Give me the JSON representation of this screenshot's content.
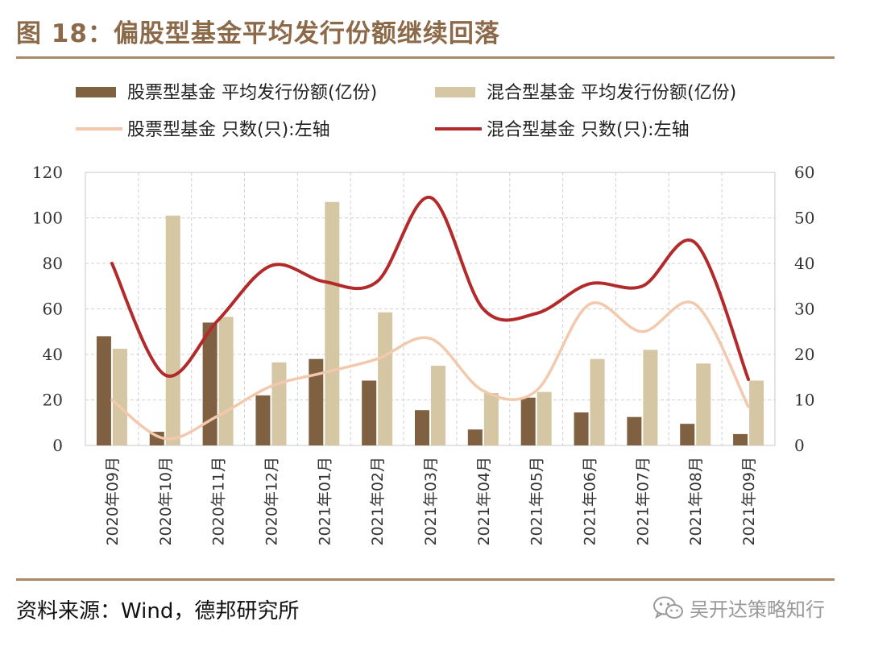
{
  "figure": {
    "title": "图 18：偏股型基金平均发行份额继续回落",
    "source": "资料来源：Wind，德邦研究所",
    "watermark": "吴开达策略知行",
    "watermark_icon": "wechat-icon"
  },
  "colors": {
    "stock_bar": "#7f6141",
    "mixed_bar": "#d5c6a4",
    "stock_line": "#f2c9ac",
    "mixed_line": "#b22a2a",
    "accent": "#8c6a49"
  },
  "chart_data": {
    "type": "bar",
    "categories": [
      "2020年09月",
      "2020年10月",
      "2020年11月",
      "2020年12月",
      "2021年01月",
      "2021年02月",
      "2021年03月",
      "2021年04月",
      "2021年05月",
      "2021年06月",
      "2021年07月",
      "2021年08月",
      "2021年09月"
    ],
    "series": [
      {
        "name": "股票型基金 平均发行份额(亿份)",
        "type": "bar",
        "axis": "left",
        "values": [
          48,
          6,
          54,
          22,
          38,
          28.5,
          15.5,
          7,
          21,
          14.5,
          12.5,
          9.5,
          5
        ]
      },
      {
        "name": "混合型基金 平均发行份额(亿份)",
        "type": "bar",
        "axis": "left",
        "values": [
          42.5,
          101,
          56.5,
          36.5,
          107,
          58.5,
          35,
          23,
          23.5,
          38,
          42,
          36,
          28.5
        ]
      },
      {
        "name": "股票型基金 只数(只):左轴",
        "type": "line",
        "axis": "right",
        "values": [
          10,
          1.5,
          6.5,
          13,
          16,
          19,
          23.5,
          12,
          12,
          31,
          25,
          31,
          8.5
        ]
      },
      {
        "name": "混合型基金 只数(只):左轴",
        "type": "line",
        "axis": "right",
        "values": [
          40,
          15.5,
          27.5,
          39.5,
          36,
          36,
          54.5,
          30,
          29,
          35.5,
          35,
          44.5,
          14.5
        ]
      }
    ],
    "y_left": {
      "min": 0,
      "max": 120,
      "ticks": [
        0,
        20,
        40,
        60,
        80,
        100,
        120
      ]
    },
    "y_right": {
      "min": 0,
      "max": 60,
      "ticks": [
        0,
        10,
        20,
        30,
        40,
        50,
        60
      ]
    },
    "grid": "dashed",
    "legend": "top"
  }
}
